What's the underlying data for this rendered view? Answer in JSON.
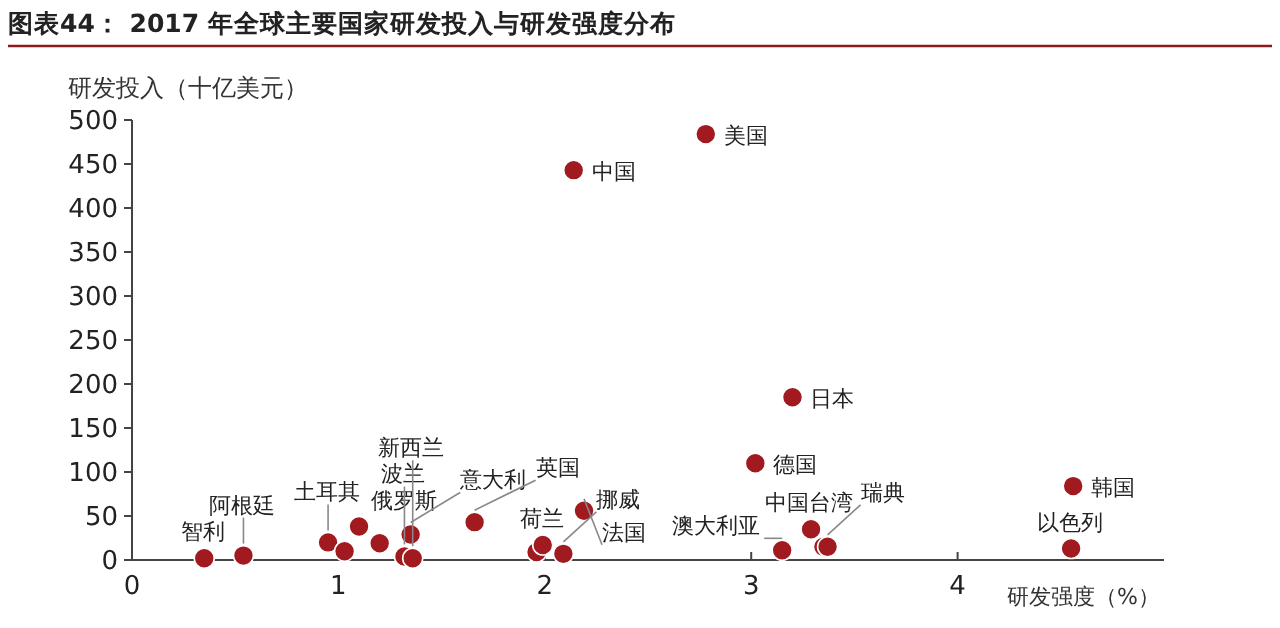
{
  "chart_data": {
    "type": "scatter",
    "title": "图表44：  2017 年全球主要国家研发投入与研发强度分布",
    "ylabel": "研发投入（十亿美元）",
    "xlabel": "研发强度（%）",
    "x": [
      0.35,
      0.54,
      0.95,
      1.03,
      1.1,
      1.2,
      1.35,
      1.32,
      1.36,
      1.66,
      1.96,
      1.99,
      2.09,
      2.19,
      2.14,
      2.78,
      3.2,
      3.02,
      3.29,
      3.15,
      3.35,
      3.37,
      4.56,
      4.55
    ],
    "values": [
      2,
      5,
      20,
      10,
      38,
      19,
      29,
      4,
      2,
      43,
      9,
      17,
      7,
      56,
      443,
      484,
      185,
      110,
      35,
      11,
      15,
      15,
      84,
      13
    ],
    "color": "#a11a1f",
    "marker": "circle",
    "xlim": [
      0,
      5
    ],
    "xticks": [
      0,
      1,
      2,
      3,
      4
    ],
    "ylim": [
      0,
      500
    ],
    "yticks": [
      0,
      50,
      100,
      150,
      200,
      250,
      300,
      350,
      400,
      450,
      500
    ],
    "annotations": [
      {
        "text": "智利",
        "x": 0.35,
        "y": 2
      },
      {
        "text": "阿根廷",
        "x": 0.54,
        "y": 5
      },
      {
        "text": "土耳其",
        "x": 0.95,
        "y": 20
      },
      {
        "text": "俄罗斯",
        "x": 1.1,
        "y": 38
      },
      {
        "text": "意大利",
        "x": 1.35,
        "y": 29
      },
      {
        "text": "波兰",
        "x": 1.32,
        "y": 4
      },
      {
        "text": "新西兰",
        "x": 1.36,
        "y": 2
      },
      {
        "text": "英国",
        "x": 1.66,
        "y": 43
      },
      {
        "text": "荷兰",
        "x": 1.99,
        "y": 17
      },
      {
        "text": "挪威",
        "x": 2.09,
        "y": 7
      },
      {
        "text": "法国",
        "x": 2.19,
        "y": 56
      },
      {
        "text": "中国",
        "x": 2.14,
        "y": 443
      },
      {
        "text": "美国",
        "x": 2.78,
        "y": 484
      },
      {
        "text": "日本",
        "x": 3.2,
        "y": 185
      },
      {
        "text": "德国",
        "x": 3.02,
        "y": 110
      },
      {
        "text": "中国台湾",
        "x": 3.29,
        "y": 35
      },
      {
        "text": "澳大利亚",
        "x": 3.15,
        "y": 11
      },
      {
        "text": "瑞典",
        "x": 3.37,
        "y": 15
      },
      {
        "text": "韩国",
        "x": 4.56,
        "y": 84
      },
      {
        "text": "以色列",
        "x": 4.55,
        "y": 13
      }
    ]
  }
}
